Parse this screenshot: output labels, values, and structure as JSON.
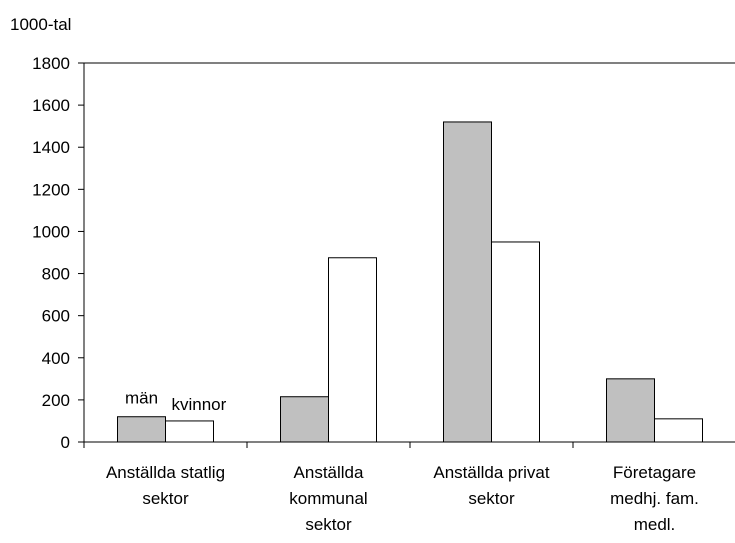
{
  "chart_data": {
    "type": "bar",
    "ylabel": "1000-tal",
    "ylim": [
      0,
      1800
    ],
    "ytick_step": 200,
    "grid": false,
    "categories": [
      [
        "Anställda statlig",
        "sektor"
      ],
      [
        "Anställda",
        "kommunal",
        "sektor"
      ],
      [
        "Anställda privat",
        "sektor"
      ],
      [
        "Företagare",
        "medhj. fam.",
        "medl."
      ]
    ],
    "series": [
      {
        "name": "män",
        "color": "#c0c0c0",
        "values": [
          120,
          215,
          1520,
          300
        ]
      },
      {
        "name": "kvinnor",
        "color": "#ffffff",
        "values": [
          100,
          875,
          950,
          110
        ]
      }
    ]
  }
}
